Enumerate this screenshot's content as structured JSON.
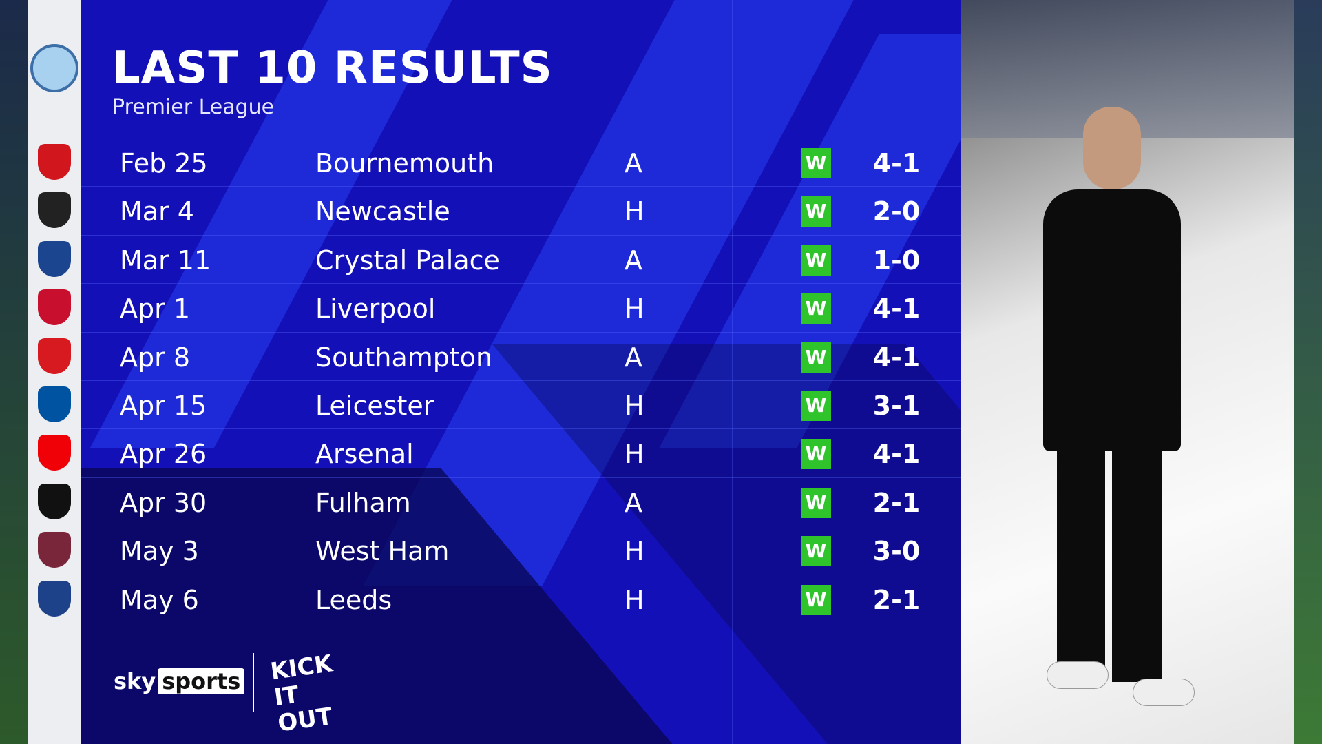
{
  "header": {
    "title": "LAST 10 RESULTS",
    "subtitle": "Premier League",
    "team_crest": "manchester-city-crest"
  },
  "results": [
    {
      "date": "Feb 25",
      "opponent": "Bournemouth",
      "venue": "A",
      "result": "W",
      "score": "4-1",
      "crest_color": "#d2161e"
    },
    {
      "date": "Mar 4",
      "opponent": "Newcastle",
      "venue": "H",
      "result": "W",
      "score": "2-0",
      "crest_color": "#222222"
    },
    {
      "date": "Mar 11",
      "opponent": "Crystal Palace",
      "venue": "A",
      "result": "W",
      "score": "1-0",
      "crest_color": "#1b458f"
    },
    {
      "date": "Apr 1",
      "opponent": "Liverpool",
      "venue": "H",
      "result": "W",
      "score": "4-1",
      "crest_color": "#c8102e"
    },
    {
      "date": "Apr 8",
      "opponent": "Southampton",
      "venue": "A",
      "result": "W",
      "score": "4-1",
      "crest_color": "#d71920"
    },
    {
      "date": "Apr 15",
      "opponent": "Leicester",
      "venue": "H",
      "result": "W",
      "score": "3-1",
      "crest_color": "#0053a0"
    },
    {
      "date": "Apr 26",
      "opponent": "Arsenal",
      "venue": "H",
      "result": "W",
      "score": "4-1",
      "crest_color": "#ef0107"
    },
    {
      "date": "Apr 30",
      "opponent": "Fulham",
      "venue": "A",
      "result": "W",
      "score": "2-1",
      "crest_color": "#111111"
    },
    {
      "date": "May 3",
      "opponent": "West Ham",
      "venue": "H",
      "result": "W",
      "score": "3-0",
      "crest_color": "#7a263a"
    },
    {
      "date": "May 6",
      "opponent": "Leeds",
      "venue": "H",
      "result": "W",
      "score": "2-1",
      "crest_color": "#1d428a"
    }
  ],
  "footer": {
    "brand_sky": "sky",
    "brand_sports": "sports",
    "campaign": "KICK IT OUT"
  },
  "colors": {
    "panel": "#1410b8",
    "win": "#2fc42b"
  }
}
